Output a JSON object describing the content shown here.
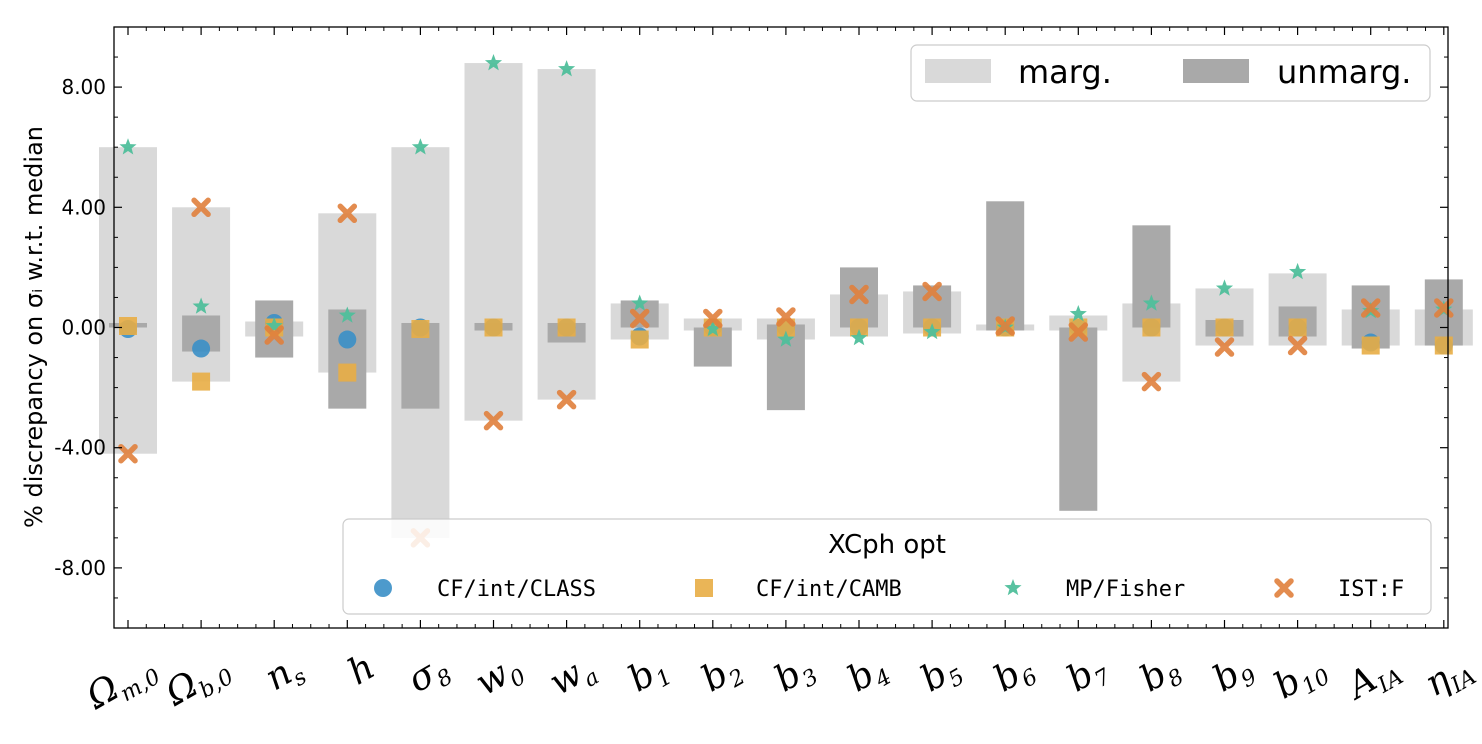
{
  "chart_data": {
    "type": "bar",
    "ylabel": "% discrepancy on σᵢ w.r.t. median",
    "ylim": [
      -10,
      10
    ],
    "yticks": [
      -8,
      -4,
      0,
      4,
      8
    ],
    "ytick_labels": [
      "-8.00",
      "-4.00",
      "0.00",
      "4.00",
      "8.00"
    ],
    "categories": [
      "Ωm,0",
      "Ωb,0",
      "ns",
      "h",
      "σ8",
      "w0",
      "wa",
      "b1",
      "b2",
      "b3",
      "b4",
      "b5",
      "b6",
      "b7",
      "b8",
      "b9",
      "b10",
      "AIA",
      "ηIA"
    ],
    "category_parts": [
      {
        "main": "Ω",
        "sub": "m,0"
      },
      {
        "main": "Ω",
        "sub": "b,0"
      },
      {
        "main": "n",
        "sub": "s"
      },
      {
        "main": "h",
        "sub": ""
      },
      {
        "main": "σ",
        "sub": "8"
      },
      {
        "main": "w",
        "sub": "0"
      },
      {
        "main": "w",
        "sub": "a"
      },
      {
        "main": "b",
        "sub": "1"
      },
      {
        "main": "b",
        "sub": "2"
      },
      {
        "main": "b",
        "sub": "3"
      },
      {
        "main": "b",
        "sub": "4"
      },
      {
        "main": "b",
        "sub": "5"
      },
      {
        "main": "b",
        "sub": "6"
      },
      {
        "main": "b",
        "sub": "7"
      },
      {
        "main": "b",
        "sub": "8"
      },
      {
        "main": "b",
        "sub": "9"
      },
      {
        "main": "b",
        "sub": "10"
      },
      {
        "main": "A",
        "sub": "IA"
      },
      {
        "main": "η",
        "sub": "IA"
      }
    ],
    "bars": {
      "marg": {
        "label": "marg.",
        "color": "#d9d9d9",
        "ranges": [
          [
            -4.2,
            6.0
          ],
          [
            -1.8,
            4.0
          ],
          [
            -0.3,
            0.2
          ],
          [
            -1.5,
            3.8
          ],
          [
            -7.0,
            6.0
          ],
          [
            -3.1,
            8.8
          ],
          [
            -2.4,
            8.6
          ],
          [
            -0.4,
            0.8
          ],
          [
            -0.1,
            0.3
          ],
          [
            -0.4,
            0.3
          ],
          [
            -0.3,
            1.1
          ],
          [
            -0.2,
            1.2
          ],
          [
            -0.1,
            0.1
          ],
          [
            -0.1,
            0.4
          ],
          [
            -1.8,
            0.8
          ],
          [
            -0.6,
            1.3
          ],
          [
            -0.6,
            1.8
          ],
          [
            -0.6,
            0.6
          ],
          [
            -0.6,
            0.6
          ]
        ]
      },
      "unmarg": {
        "label": "unmarg.",
        "color": "#a9a9a9",
        "ranges": [
          [
            0.0,
            0.15
          ],
          [
            -0.8,
            0.4
          ],
          [
            -1.0,
            0.9
          ],
          [
            -2.7,
            0.6
          ],
          [
            -2.7,
            0.15
          ],
          [
            -0.1,
            0.15
          ],
          [
            -0.5,
            0.15
          ],
          [
            0.0,
            0.9
          ],
          [
            -1.3,
            0.0
          ],
          [
            -2.75,
            0.1
          ],
          [
            0.0,
            2.0
          ],
          [
            0.0,
            1.4
          ],
          [
            -0.1,
            4.2
          ],
          [
            -6.1,
            0.0
          ],
          [
            0.0,
            3.4
          ],
          [
            -0.3,
            0.25
          ],
          [
            -0.3,
            0.7
          ],
          [
            -0.7,
            1.4
          ],
          [
            -0.6,
            1.6
          ]
        ]
      }
    },
    "series": [
      {
        "name": "CF/int/CLASS",
        "marker": "circle",
        "color": "#3a8fc7",
        "values": [
          -0.05,
          -0.7,
          0.15,
          -0.4,
          0.0,
          0.0,
          0.0,
          -0.3,
          0.0,
          0.0,
          0.0,
          0.0,
          0.0,
          0.0,
          0.0,
          0.0,
          0.0,
          -0.5,
          -0.6
        ]
      },
      {
        "name": "CF/int/CAMB",
        "marker": "square",
        "color": "#e8ad45",
        "values": [
          0.05,
          -1.8,
          0.0,
          -1.5,
          -0.05,
          0.0,
          0.0,
          -0.4,
          0.0,
          0.0,
          0.0,
          0.0,
          0.0,
          0.0,
          0.0,
          0.0,
          0.0,
          -0.6,
          -0.6
        ]
      },
      {
        "name": "MP/Fisher",
        "marker": "star",
        "color": "#4fbf9b",
        "values": [
          6.0,
          0.7,
          0.05,
          0.4,
          6.0,
          8.8,
          8.6,
          0.8,
          -0.05,
          -0.4,
          -0.35,
          -0.15,
          0.0,
          0.45,
          0.8,
          1.3,
          1.85,
          0.55,
          0.6
        ]
      },
      {
        "name": "IST:F",
        "marker": "x",
        "color": "#e07f3c",
        "values": [
          -4.2,
          4.0,
          -0.25,
          3.8,
          -7.0,
          -3.1,
          -2.4,
          0.3,
          0.3,
          0.35,
          1.1,
          1.2,
          0.05,
          -0.15,
          -1.8,
          -0.65,
          -0.6,
          0.65,
          0.65
        ]
      }
    ],
    "legend_top": {
      "placement": "top-right",
      "entries": [
        "marg.",
        "unmarg."
      ]
    },
    "legend_bottom": {
      "placement": "bottom",
      "title": "XCph opt",
      "entries": [
        "CF/int/CLASS",
        "CF/int/CAMB",
        "MP/Fisher",
        "IST:F"
      ]
    }
  }
}
